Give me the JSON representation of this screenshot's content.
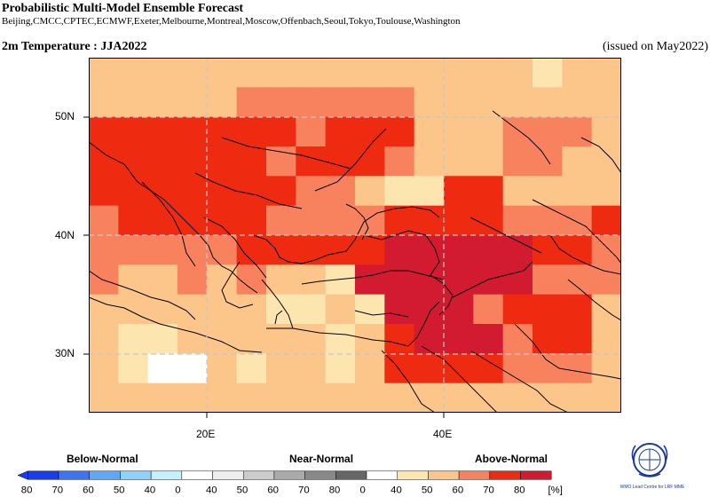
{
  "header": {
    "title": "Probabilistic Multi-Model Ensemble Forecast",
    "centres": "Beijing,CMCC,CPTEC,ECMWF,Exeter,Melbourne,Montreal,Moscow,Offenbach,Seoul,Tokyo,Toulouse,Washington",
    "field": "2m Temperature : JJA2022",
    "issued": "(issued on May2022)"
  },
  "axes": {
    "lat_labels": [
      "50N",
      "40N",
      "30N"
    ],
    "lon_labels": [
      "20E",
      "40E"
    ]
  },
  "map": {
    "grid": "dashed-gray",
    "cell_colors": {
      "w": "#ffffff",
      "a": "#fde5b0",
      "b": "#fcc58a",
      "c": "#f8825e",
      "d": "#ee2a10",
      "e": "#d21a30"
    },
    "rows": [
      "bbbbbbbbbbbbbbbbbbbbbbbbbbbbbbbbbbbbbbbbbbbbbbbbbbbbbbbbbbbbbbbbbbbbbbbbbbbbbbbbbbbbbbbbbbbbbbbbbbbbbbbbbbbbbbbbbbbbbbbbbbbbbbbbbbbbbbbbbbbbbbbbbbbbbbbbbbbbbbbbbbbbbbbbbbbbbbbbbbbbbbbbbbbbbbbbbbbbbbbbbbbbbbbbbbbbbbbbbbbbbbbbbbbbbbbbbbbbbbbbbbbbb"
    ]
  },
  "legend": {
    "below_label": "Below-Normal",
    "near_label": "Near-Normal",
    "above_label": "Above-Normal",
    "unit": "[%]",
    "ticks": [
      "80",
      "70",
      "60",
      "50",
      "40",
      "0",
      "40",
      "50",
      "60",
      "70",
      "80",
      "0",
      "40",
      "50",
      "60",
      "70",
      "80"
    ],
    "below_colors": [
      "#1a3cf0",
      "#3b74f7",
      "#5ea8fb",
      "#8dd3fd",
      "#c2f2ff"
    ],
    "near_colors": [
      "#eeeeee",
      "#cccccc",
      "#aaaaaa",
      "#888888",
      "#666666"
    ],
    "above_colors": [
      "#fde5b0",
      "#fcc58a",
      "#f8825e",
      "#ee2a10",
      "#d21a30"
    ],
    "blank_color": "#ffffff"
  },
  "logo": {
    "text": "WMO Lead Centre for LRF MME"
  }
}
